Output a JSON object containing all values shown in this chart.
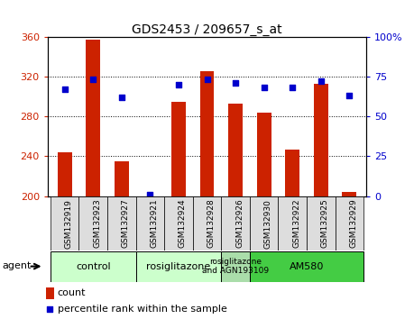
{
  "title": "GDS2453 / 209657_s_at",
  "samples": [
    "GSM132919",
    "GSM132923",
    "GSM132927",
    "GSM132921",
    "GSM132924",
    "GSM132928",
    "GSM132926",
    "GSM132930",
    "GSM132922",
    "GSM132925",
    "GSM132929"
  ],
  "counts": [
    244,
    357,
    235,
    200,
    295,
    325,
    293,
    284,
    247,
    313,
    204
  ],
  "percentiles": [
    67,
    73,
    62,
    1,
    70,
    73,
    71,
    68,
    68,
    72,
    63
  ],
  "ylim_left": [
    200,
    360
  ],
  "ylim_right": [
    0,
    100
  ],
  "yticks_left": [
    200,
    240,
    280,
    320,
    360
  ],
  "yticks_right": [
    0,
    25,
    50,
    75,
    100
  ],
  "bar_color": "#cc2200",
  "dot_color": "#0000cc",
  "groups": [
    {
      "label": "control",
      "start": 0,
      "end": 3,
      "color": "#ccffcc"
    },
    {
      "label": "rosiglitazone",
      "start": 3,
      "end": 6,
      "color": "#ccffcc"
    },
    {
      "label": "rosiglitazone\nand AGN193109",
      "start": 6,
      "end": 7,
      "color": "#aaddaa"
    },
    {
      "label": "AM580",
      "start": 7,
      "end": 11,
      "color": "#44cc44"
    }
  ],
  "agent_label": "agent",
  "legend_count_label": "count",
  "legend_pct_label": "percentile rank within the sample",
  "bar_width": 0.5,
  "tick_label_fontsize": 6.5,
  "title_fontsize": 10,
  "group_fontsize": 8,
  "axis_tick_fontsize": 8
}
